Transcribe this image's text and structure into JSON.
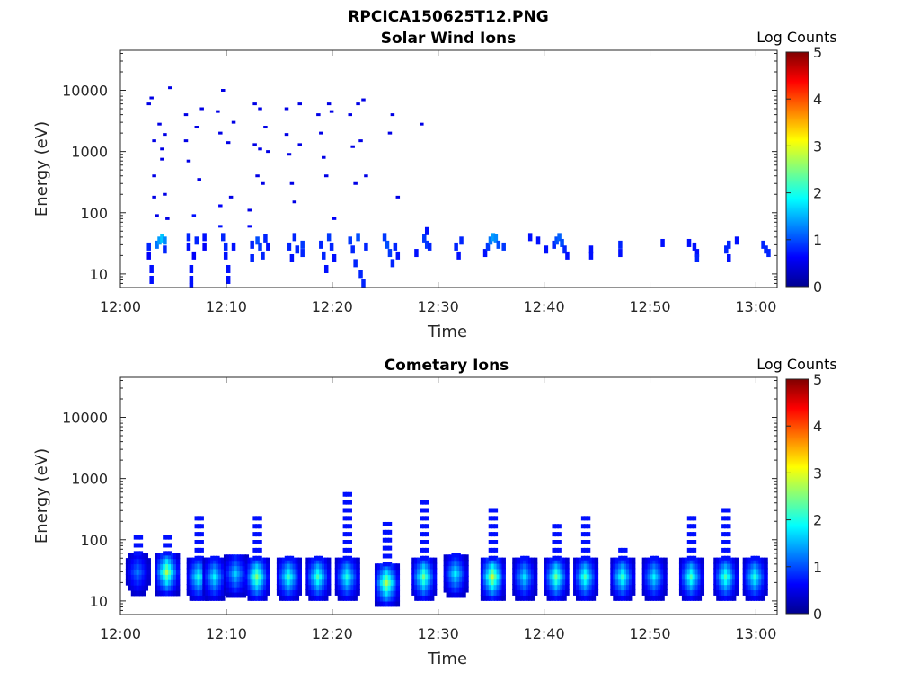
{
  "figure": {
    "title": "RPCICA150625T12.PNG"
  },
  "chart_data": [
    {
      "type": "heatmap",
      "title": "Solar Wind Ions",
      "xlabel": "Time",
      "ylabel": "Energy (eV)",
      "x_ticks": [
        "12:00",
        "12:10",
        "12:20",
        "12:30",
        "12:40",
        "12:50",
        "13:00"
      ],
      "y_ticks": [
        "10",
        "100",
        "1000",
        "10000"
      ],
      "y_scale": "log",
      "xlim": [
        "12:00",
        "13:02"
      ],
      "ylim": [
        6,
        45000
      ],
      "colorbar": {
        "label": "Log Counts",
        "ticks": [
          "0",
          "1",
          "2",
          "3",
          "4",
          "5"
        ],
        "range": [
          0,
          5
        ],
        "colormap": "jet"
      },
      "cells": [
        [
          "12:02:30",
          28,
          0.8
        ],
        [
          "12:02:30",
          20,
          0.6
        ],
        [
          "12:02:45",
          12,
          0.7
        ],
        [
          "12:02:45",
          8,
          0.7
        ],
        [
          "12:02:30",
          6000,
          0.5
        ],
        [
          "12:02:45",
          7500,
          0.5
        ],
        [
          "12:03:00",
          1500,
          0.5
        ],
        [
          "12:03:00",
          400,
          0.5
        ],
        [
          "12:03:00",
          180,
          0.5
        ],
        [
          "12:03:15",
          90,
          0.5
        ],
        [
          "12:03:15",
          30,
          1.2
        ],
        [
          "12:03:30",
          35,
          1.4
        ],
        [
          "12:03:45",
          38,
          1.6
        ],
        [
          "12:04:00",
          35,
          1.3
        ],
        [
          "12:03:30",
          2800,
          0.5
        ],
        [
          "12:03:45",
          1100,
          0.5
        ],
        [
          "12:03:45",
          750,
          0.5
        ],
        [
          "12:04:00",
          1900,
          0.5
        ],
        [
          "12:04:00",
          200,
          0.5
        ],
        [
          "12:04:15",
          80,
          0.5
        ],
        [
          "12:04:30",
          11000,
          0.5
        ],
        [
          "12:04:00",
          25,
          0.8
        ],
        [
          "12:06:00",
          4000,
          0.5
        ],
        [
          "12:06:00",
          1500,
          0.5
        ],
        [
          "12:06:15",
          700,
          0.5
        ],
        [
          "12:06:15",
          40,
          0.8
        ],
        [
          "12:06:15",
          28,
          0.7
        ],
        [
          "12:06:30",
          12,
          0.7
        ],
        [
          "12:06:30",
          8,
          0.7
        ],
        [
          "12:06:30",
          6,
          0.7
        ],
        [
          "12:06:45",
          90,
          0.7
        ],
        [
          "12:06:45",
          20,
          0.6
        ],
        [
          "12:07:00",
          35,
          0.8
        ],
        [
          "12:07:00",
          2500,
          0.5
        ],
        [
          "12:07:15",
          350,
          0.5
        ],
        [
          "12:07:30",
          5000,
          0.5
        ],
        [
          "12:07:45",
          40,
          0.7
        ],
        [
          "12:07:45",
          28,
          0.6
        ],
        [
          "12:09:00",
          4500,
          0.5
        ],
        [
          "12:09:15",
          2000,
          0.5
        ],
        [
          "12:09:15",
          130,
          0.6
        ],
        [
          "12:09:15",
          60,
          0.7
        ],
        [
          "12:09:30",
          10000,
          0.5
        ],
        [
          "12:09:30",
          40,
          0.8
        ],
        [
          "12:09:45",
          28,
          0.8
        ],
        [
          "12:09:45",
          20,
          0.7
        ],
        [
          "12:10:00",
          12,
          0.7
        ],
        [
          "12:10:00",
          8,
          0.7
        ],
        [
          "12:10:00",
          1400,
          0.5
        ],
        [
          "12:10:15",
          180,
          0.5
        ],
        [
          "12:10:30",
          3000,
          0.5
        ],
        [
          "12:10:30",
          28,
          0.7
        ],
        [
          "12:12:00",
          110,
          0.5
        ],
        [
          "12:12:00",
          60,
          0.6
        ],
        [
          "12:12:15",
          30,
          0.8
        ],
        [
          "12:12:15",
          18,
          0.8
        ],
        [
          "12:12:30",
          6000,
          0.5
        ],
        [
          "12:12:30",
          1300,
          0.5
        ],
        [
          "12:12:45",
          400,
          0.5
        ],
        [
          "12:12:45",
          35,
          1.0
        ],
        [
          "12:13:00",
          28,
          0.9
        ],
        [
          "12:13:00",
          5000,
          0.5
        ],
        [
          "12:13:00",
          1100,
          0.5
        ],
        [
          "12:13:15",
          300,
          0.5
        ],
        [
          "12:13:15",
          20,
          0.8
        ],
        [
          "12:13:30",
          38,
          0.8
        ],
        [
          "12:13:30",
          2500,
          0.5
        ],
        [
          "12:13:45",
          1000,
          0.5
        ],
        [
          "12:13:45",
          28,
          0.7
        ],
        [
          "12:15:30",
          5000,
          0.5
        ],
        [
          "12:15:30",
          1900,
          0.5
        ],
        [
          "12:15:45",
          900,
          0.5
        ],
        [
          "12:15:45",
          28,
          0.8
        ],
        [
          "12:16:00",
          300,
          0.5
        ],
        [
          "12:16:00",
          18,
          0.7
        ],
        [
          "12:16:15",
          150,
          0.5
        ],
        [
          "12:16:15",
          40,
          0.8
        ],
        [
          "12:16:30",
          25,
          0.8
        ],
        [
          "12:16:45",
          6000,
          0.5
        ],
        [
          "12:16:45",
          1300,
          0.5
        ],
        [
          "12:17:00",
          30,
          0.9
        ],
        [
          "12:17:00",
          22,
          0.8
        ],
        [
          "12:18:30",
          4000,
          0.5
        ],
        [
          "12:18:45",
          2000,
          0.5
        ],
        [
          "12:18:45",
          30,
          0.8
        ],
        [
          "12:19:00",
          800,
          0.5
        ],
        [
          "12:19:00",
          20,
          0.8
        ],
        [
          "12:19:15",
          400,
          0.5
        ],
        [
          "12:19:15",
          12,
          0.7
        ],
        [
          "12:19:30",
          6000,
          0.5
        ],
        [
          "12:19:30",
          40,
          0.9
        ],
        [
          "12:19:45",
          4500,
          0.5
        ],
        [
          "12:19:45",
          28,
          0.8
        ],
        [
          "12:20:00",
          80,
          0.6
        ],
        [
          "12:20:00",
          18,
          0.7
        ],
        [
          "12:21:30",
          4000,
          0.5
        ],
        [
          "12:21:30",
          35,
          0.9
        ],
        [
          "12:21:45",
          1200,
          0.5
        ],
        [
          "12:21:45",
          25,
          0.8
        ],
        [
          "12:22:00",
          300,
          0.5
        ],
        [
          "12:22:00",
          15,
          0.8
        ],
        [
          "12:22:15",
          6000,
          0.5
        ],
        [
          "12:22:15",
          40,
          1.0
        ],
        [
          "12:22:30",
          1500,
          0.5
        ],
        [
          "12:22:30",
          10,
          0.8
        ],
        [
          "12:22:45",
          7000,
          0.5
        ],
        [
          "12:22:45",
          7,
          0.8
        ],
        [
          "12:23:00",
          400,
          0.5
        ],
        [
          "12:23:00",
          28,
          0.8
        ],
        [
          "12:24:45",
          40,
          0.9
        ],
        [
          "12:25:00",
          30,
          1.0
        ],
        [
          "12:25:15",
          22,
          0.9
        ],
        [
          "12:25:15",
          2000,
          0.5
        ],
        [
          "12:25:30",
          15,
          0.8
        ],
        [
          "12:25:30",
          4000,
          0.5
        ],
        [
          "12:25:45",
          28,
          0.8
        ],
        [
          "12:26:00",
          180,
          0.5
        ],
        [
          "12:26:00",
          20,
          0.7
        ],
        [
          "12:27:45",
          22,
          0.7
        ],
        [
          "12:28:15",
          2800,
          0.5
        ],
        [
          "12:28:30",
          38,
          0.9
        ],
        [
          "12:28:45",
          30,
          0.9
        ],
        [
          "12:28:45",
          50,
          0.7
        ],
        [
          "12:29:00",
          28,
          0.8
        ],
        [
          "12:31:30",
          28,
          0.8
        ],
        [
          "12:31:45",
          20,
          0.7
        ],
        [
          "12:32:00",
          35,
          0.8
        ],
        [
          "12:34:15",
          22,
          0.7
        ],
        [
          "12:34:30",
          28,
          0.9
        ],
        [
          "12:34:45",
          35,
          1.2
        ],
        [
          "12:35:00",
          40,
          1.4
        ],
        [
          "12:35:15",
          38,
          1.3
        ],
        [
          "12:35:30",
          30,
          1.0
        ],
        [
          "12:36:00",
          28,
          0.9
        ],
        [
          "12:38:30",
          40,
          0.7
        ],
        [
          "12:39:15",
          35,
          0.7
        ],
        [
          "12:40:00",
          25,
          0.7
        ],
        [
          "12:40:45",
          30,
          0.8
        ],
        [
          "12:41:00",
          35,
          1.0
        ],
        [
          "12:41:15",
          40,
          1.1
        ],
        [
          "12:41:30",
          32,
          1.0
        ],
        [
          "12:41:45",
          25,
          0.8
        ],
        [
          "12:42:00",
          20,
          0.7
        ],
        [
          "12:44:15",
          25,
          0.7
        ],
        [
          "12:44:15",
          20,
          0.7
        ],
        [
          "12:47:00",
          30,
          0.8
        ],
        [
          "12:47:00",
          22,
          0.7
        ],
        [
          "12:51:00",
          32,
          0.7
        ],
        [
          "12:53:30",
          32,
          0.7
        ],
        [
          "12:54:00",
          28,
          0.7
        ],
        [
          "12:54:15",
          22,
          0.7
        ],
        [
          "12:54:15",
          18,
          0.8
        ],
        [
          "12:57:00",
          25,
          0.8
        ],
        [
          "12:57:15",
          30,
          0.8
        ],
        [
          "12:57:15",
          18,
          0.7
        ],
        [
          "12:58:00",
          35,
          0.7
        ],
        [
          "13:00:30",
          30,
          0.8
        ],
        [
          "13:00:45",
          25,
          0.8
        ],
        [
          "13:01:00",
          22,
          0.8
        ]
      ]
    },
    {
      "type": "heatmap",
      "title": "Cometary Ions",
      "xlabel": "Time",
      "ylabel": "Energy (eV)",
      "x_ticks": [
        "12:00",
        "12:10",
        "12:20",
        "12:30",
        "12:40",
        "12:50",
        "13:00"
      ],
      "y_ticks": [
        "10",
        "100",
        "1000",
        "10000"
      ],
      "y_scale": "log",
      "xlim": [
        "12:00",
        "13:02"
      ],
      "ylim": [
        6,
        45000
      ],
      "colorbar": {
        "label": "Log Counts",
        "ticks": [
          "0",
          "1",
          "2",
          "3",
          "4",
          "5"
        ],
        "range": [
          0,
          5
        ],
        "colormap": "jet"
      },
      "bursts": [
        [
          "12:01:30",
          30,
          1.0,
          120
        ],
        [
          "12:04:15",
          30,
          2.5,
          140
        ],
        [
          "12:07:15",
          25,
          1.8,
          250
        ],
        [
          "12:08:45",
          25,
          1.6,
          60
        ],
        [
          "12:10:45",
          28,
          1.4,
          40
        ],
        [
          "12:12:45",
          25,
          2.3,
          250
        ],
        [
          "12:15:45",
          25,
          1.9,
          60
        ],
        [
          "12:18:30",
          25,
          2.0,
          60
        ],
        [
          "12:21:15",
          25,
          1.8,
          600
        ],
        [
          "12:25:00",
          20,
          2.5,
          200
        ],
        [
          "12:28:30",
          25,
          2.2,
          550
        ],
        [
          "12:31:30",
          28,
          1.6,
          60
        ],
        [
          "12:35:00",
          25,
          2.6,
          350
        ],
        [
          "12:38:00",
          25,
          1.5,
          60
        ],
        [
          "12:41:00",
          25,
          2.2,
          220
        ],
        [
          "12:43:45",
          25,
          2.0,
          280
        ],
        [
          "12:47:15",
          25,
          1.9,
          80
        ],
        [
          "12:50:15",
          25,
          1.6,
          60
        ],
        [
          "12:53:45",
          25,
          2.0,
          300
        ],
        [
          "12:57:00",
          25,
          2.0,
          400
        ],
        [
          "12:59:45",
          25,
          1.8,
          60
        ]
      ]
    }
  ]
}
